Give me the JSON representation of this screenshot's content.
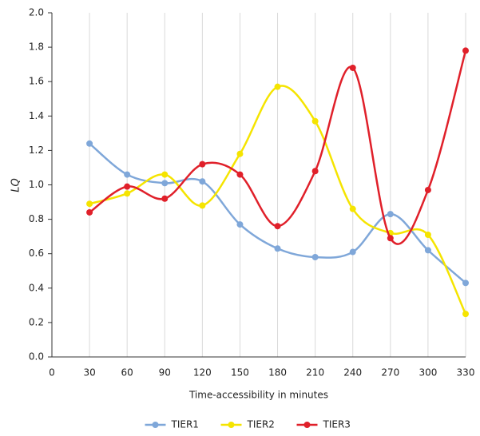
{
  "chart_data": {
    "type": "line",
    "x_label": "Time-accessibility in minutes",
    "y_label": "LQ",
    "x": [
      30,
      60,
      90,
      120,
      150,
      180,
      210,
      240,
      270,
      300,
      330
    ],
    "series": [
      {
        "name": "TIER1",
        "color": "#7fa7d9",
        "values": [
          1.24,
          1.06,
          1.01,
          1.02,
          0.77,
          0.63,
          0.58,
          0.61,
          0.83,
          0.62,
          0.43
        ]
      },
      {
        "name": "TIER2",
        "color": "#f5e400",
        "values": [
          0.89,
          0.95,
          1.06,
          0.88,
          1.18,
          1.57,
          1.37,
          0.86,
          0.72,
          0.71,
          0.25
        ]
      },
      {
        "name": "TIER3",
        "color": "#e0202a",
        "values": [
          0.84,
          0.99,
          0.92,
          1.12,
          1.06,
          0.76,
          1.08,
          1.68,
          0.69,
          0.97,
          1.78
        ]
      }
    ],
    "xlim": [
      0,
      330
    ],
    "xticks": [
      0,
      30,
      60,
      90,
      120,
      150,
      180,
      210,
      240,
      270,
      300,
      330
    ],
    "ylim": [
      0,
      2
    ],
    "yticks": [
      {
        "value": 0,
        "label": "0.0"
      },
      {
        "value": 0.2,
        "label": "0.2"
      },
      {
        "value": 0.4,
        "label": "0.4"
      },
      {
        "value": 0.6,
        "label": "0.6"
      },
      {
        "value": 0.8,
        "label": "0.8"
      },
      {
        "value": 1,
        "label": "1.0"
      },
      {
        "value": 1.2,
        "label": "1.2"
      },
      {
        "value": 1.4,
        "label": "1.4"
      },
      {
        "value": 1.6,
        "label": "1.6"
      },
      {
        "value": 1.8,
        "label": "1.8"
      },
      {
        "value": 2,
        "label": "2.0"
      }
    ],
    "grid": "x",
    "smooth": true,
    "legend": "bottom"
  }
}
